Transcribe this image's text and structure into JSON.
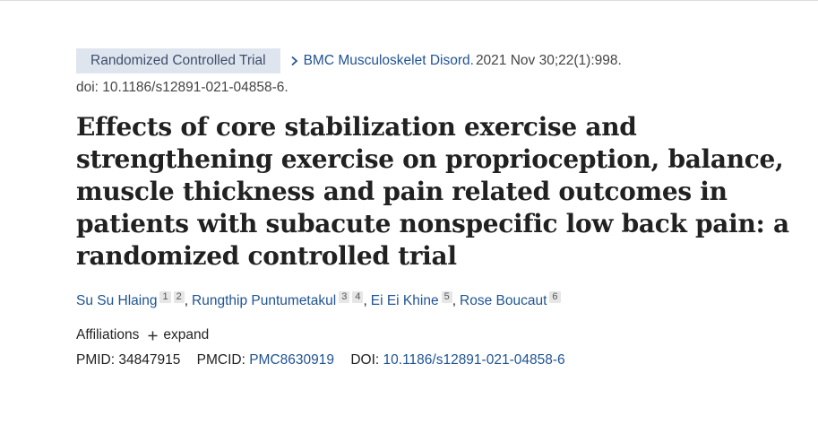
{
  "header": {
    "article_type_badge": "Randomized Controlled Trial",
    "journal": "BMC Musculoskelet Disord.",
    "citation": "2021 Nov 30;22(1):998.",
    "doi_line": "doi: 10.1186/s12891-021-04858-6."
  },
  "title": "Effects of core stabilization exercise and strengthening exercise on proprioception, balance, muscle thickness and pain related outcomes in patients with subacute nonspecific low back pain: a randomized controlled trial",
  "authors": [
    {
      "name": "Su Su Hlaing",
      "affiliations": [
        "1",
        "2"
      ]
    },
    {
      "name": "Rungthip Puntumetakul",
      "affiliations": [
        "3",
        "4"
      ]
    },
    {
      "name": "Ei Ei Khine",
      "affiliations": [
        "5"
      ]
    },
    {
      "name": "Rose Boucaut",
      "affiliations": [
        "6"
      ]
    }
  ],
  "author_separator": ",",
  "affiliations": {
    "label": "Affiliations",
    "expand_label": "expand"
  },
  "identifiers": {
    "pmid_label": "PMID:",
    "pmid": "34847915",
    "pmcid_label": "PMCID:",
    "pmcid": "PMC8630919",
    "doi_label": "DOI:",
    "doi": "10.1186/s12891-021-04858-6"
  },
  "icons": {
    "chevron": "chevron-right-icon",
    "expand": "plus-icon"
  },
  "colors": {
    "link": "#205493",
    "badge_bg": "#dfe5ef",
    "badge_text": "#3d4f6b"
  }
}
